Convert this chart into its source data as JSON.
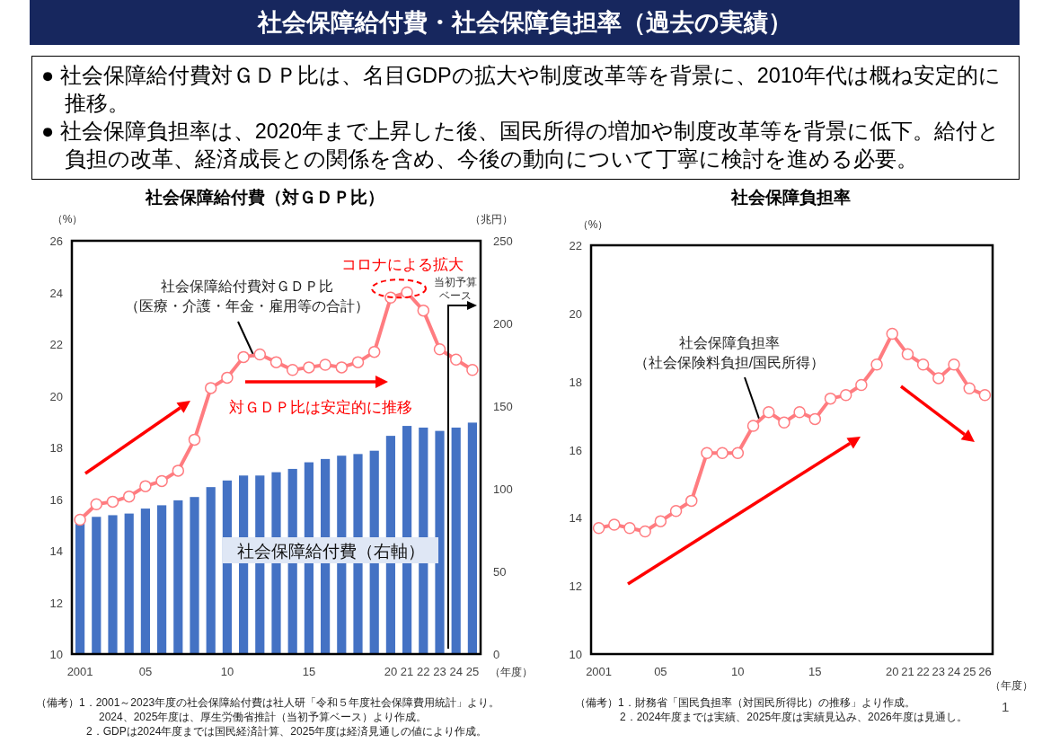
{
  "chart_data": [
    {
      "type": "other",
      "title": "社会保障給付費・社会保障負担率（過去の実績）",
      "annotations": [
        "● 社会保障給付費対ＧＤＰ比は、名目GDPの拡大や制度改革等を背景に、2010年代は概ね安定的に推移。",
        "● 社会保障負担率は、2020年まで上昇した後、国民所得の増加や制度改革等を背景に低下。給付と負担の改革、経済成長との関係を含め、今後の動向について丁寧に検討を進める必要。",
        "1"
      ]
    },
    {
      "type": "bar",
      "title": "社会保障給付費（対ＧＤＰ比）",
      "ylabel": "（%）",
      "y2label": "（兆円）",
      "xlabel": "（年度）",
      "categories": [
        "2001",
        null,
        null,
        null,
        "05",
        null,
        null,
        null,
        null,
        "10",
        null,
        null,
        null,
        null,
        "15",
        null,
        null,
        null,
        null,
        "20",
        "21",
        "22",
        "23",
        "24",
        "25"
      ],
      "ylim": [
        10,
        26
      ],
      "yticks": [
        10,
        12,
        14,
        16,
        18,
        20,
        22,
        24,
        26
      ],
      "y2lim": [
        0,
        250
      ],
      "y2ticks": [
        0,
        50,
        100,
        150,
        200,
        250
      ],
      "marker": "circle",
      "series": [
        {
          "name": "社会保障給付費（右軸）",
          "type": "bar",
          "axis": "y2",
          "color": "#4472c4",
          "values": [
            79,
            83,
            84,
            85,
            88,
            90,
            93,
            95,
            101,
            105,
            108,
            108,
            110,
            112,
            116,
            118,
            120,
            121,
            123,
            132,
            138,
            137,
            135,
            137,
            140
          ]
        },
        {
          "name": "社会保障給付費対ＧＤＰ比（医療・介護・年金・雇用等の合計）",
          "type": "line",
          "color": "#ff7c80",
          "values": [
            15.2,
            15.8,
            15.9,
            16.1,
            16.5,
            16.7,
            17.1,
            18.3,
            20.3,
            20.7,
            21.5,
            21.6,
            21.3,
            21.0,
            21.1,
            21.2,
            21.1,
            21.3,
            21.7,
            23.8,
            24.0,
            23.3,
            21.8,
            21.4,
            21.0
          ]
        }
      ],
      "annotations": [
        "コロナによる拡大",
        "当初予算ベース",
        "対ＧＤＰ比は安定的に推移",
        "（備考）1．2001～2023年度の社会保障給付費は社人研「令和５年度社会保障費用統計」より。",
        "2024、2025年度は、厚生労働省推計（当初予算ベース）より作成。",
        "2．GDPは2024年度までは国民経済計算、2025年度は経済見通しの値により作成。"
      ]
    },
    {
      "type": "line",
      "title": "社会保障負担率",
      "ylabel": "（%）",
      "xlabel": "（年度）",
      "categories": [
        "2001",
        null,
        null,
        null,
        "05",
        null,
        null,
        null,
        null,
        "10",
        null,
        null,
        null,
        null,
        "15",
        null,
        null,
        null,
        null,
        "20",
        "21",
        "22",
        "23",
        "24",
        "25",
        "26"
      ],
      "ylim": [
        10,
        22
      ],
      "yticks": [
        10,
        12,
        14,
        16,
        18,
        20,
        22
      ],
      "marker": "circle",
      "series": [
        {
          "name": "社会保障負担率（社会保険料負担/国民所得）",
          "color": "#ff7c80",
          "values": [
            13.7,
            13.8,
            13.7,
            13.6,
            13.9,
            14.2,
            14.5,
            15.9,
            15.9,
            15.9,
            16.7,
            17.1,
            16.8,
            17.1,
            16.9,
            17.5,
            17.6,
            17.9,
            18.5,
            19.4,
            18.8,
            18.5,
            18.1,
            18.5,
            17.8,
            17.6
          ]
        }
      ],
      "annotations": [
        "（備考）1．財務省「国民負担率（対国民所得比）の推移」より作成。",
        "2．2024年度までは実績、2025年度は実績見込み、2026年度は見通し。"
      ]
    }
  ]
}
